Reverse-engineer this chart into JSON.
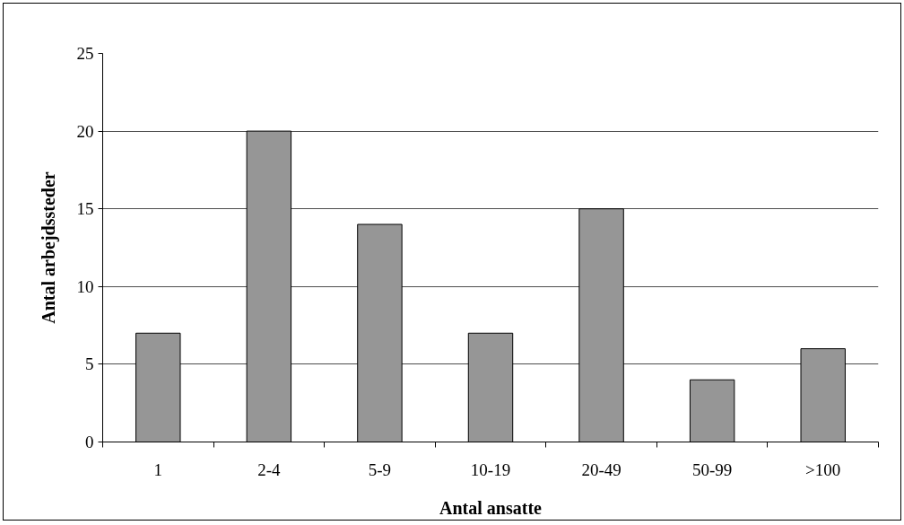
{
  "chart_data": {
    "type": "bar",
    "xlabel": "Antal ansatte",
    "ylabel": "Antal arbejdssteder",
    "categories": [
      "1",
      "2-4",
      "5-9",
      "10-19",
      "20-49",
      "50-99",
      ">100"
    ],
    "values": [
      7,
      20,
      14,
      7,
      15,
      4,
      6
    ],
    "color": "#969696",
    "ylim": [
      0,
      25
    ],
    "yticks": [
      0,
      5,
      10,
      15,
      20,
      25
    ],
    "grid": "y"
  }
}
